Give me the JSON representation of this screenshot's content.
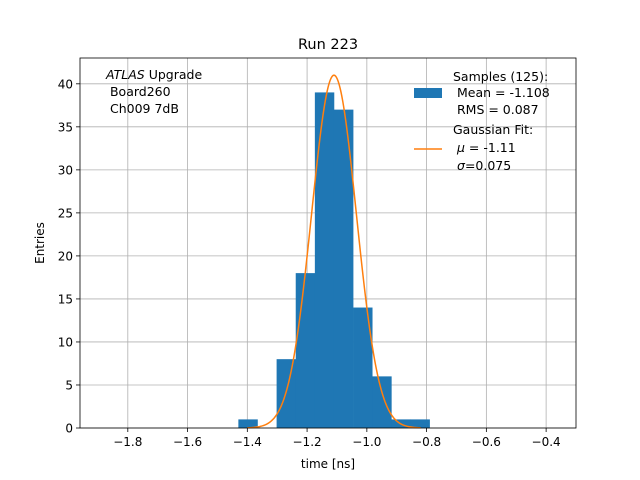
{
  "chart_data": {
    "type": "bar",
    "title": "Run 223",
    "xlabel": "time [ns]",
    "ylabel": "Entries",
    "xlim": [
      -1.96,
      -0.3
    ],
    "ylim": [
      0,
      43
    ],
    "grid": true,
    "xticks": [
      -1.8,
      -1.6,
      -1.4,
      -1.2,
      -1.0,
      -0.8,
      -0.6,
      -0.4
    ],
    "xtick_labels": [
      "−1.8",
      "−1.6",
      "−1.4",
      "−1.2",
      "−1.0",
      "−0.8",
      "−0.6",
      "−0.4"
    ],
    "yticks": [
      0,
      5,
      10,
      15,
      20,
      25,
      30,
      35,
      40
    ],
    "ytick_labels": [
      "0",
      "5",
      "10",
      "15",
      "20",
      "25",
      "30",
      "35",
      "40"
    ],
    "histogram": {
      "name": "Samples (125)",
      "color": "#1f77b4",
      "bin_edges": [
        -1.43,
        -1.366,
        -1.302,
        -1.238,
        -1.174,
        -1.11,
        -1.046,
        -0.982,
        -0.918,
        -0.854,
        -0.79
      ],
      "counts": [
        1,
        0,
        8,
        18,
        39,
        37,
        14,
        6,
        1,
        1
      ]
    },
    "fit": {
      "name": "Gaussian Fit",
      "color": "#ff7f0e",
      "mu": -1.11,
      "sigma": 0.075,
      "amplitude": 41.0,
      "x_range": [
        -1.4,
        -0.82
      ]
    },
    "annotation": {
      "line1_italic": "ATLAS",
      "line1_rest": " Upgrade",
      "line2": " Board260",
      "line3": " Ch009 7dB"
    },
    "legend": {
      "position": "top-right",
      "hist_lines": [
        "Samples (125):",
        " Mean = -1.108",
        " RMS = 0.087"
      ],
      "fit_line1": "Gaussian Fit:",
      "fit_mu_symbol": "μ",
      "fit_mu_value": " = -1.11",
      "fit_sigma_symbol": "σ",
      "fit_sigma_value": "=0.075"
    }
  }
}
